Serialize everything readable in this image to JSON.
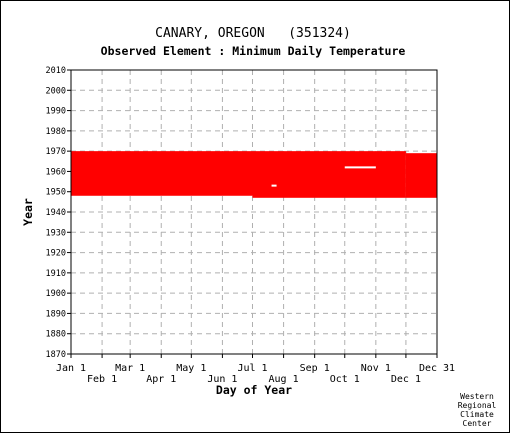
{
  "chart_data": {
    "type": "scatter",
    "title": "CANARY, OREGON   (351324)",
    "subtitle": "Observed Element : Minimum Daily Temperature",
    "xlabel": "Day of Year",
    "ylabel": "Year",
    "xlim": [
      1,
      366
    ],
    "ylim": [
      1870,
      2010
    ],
    "y_ticks": [
      2010,
      2000,
      1990,
      1980,
      1970,
      1960,
      1950,
      1940,
      1930,
      1920,
      1910,
      1900,
      1890,
      1880,
      1870
    ],
    "x_ticks_top": [
      {
        "label": "Jan 1",
        "day": 1
      },
      {
        "label": "Mar 1",
        "day": 60
      },
      {
        "label": "May 1",
        "day": 121
      },
      {
        "label": "Jul 1",
        "day": 182
      },
      {
        "label": "Sep 1",
        "day": 244
      },
      {
        "label": "Nov 1",
        "day": 305
      },
      {
        "label": "Dec 31",
        "day": 366
      }
    ],
    "x_ticks_bottom": [
      {
        "label": "Feb 1",
        "day": 32
      },
      {
        "label": "Apr 1",
        "day": 91
      },
      {
        "label": "Jun 1",
        "day": 152
      },
      {
        "label": "Aug 1",
        "day": 213
      },
      {
        "label": "Oct 1",
        "day": 274
      },
      {
        "label": "Dec 1",
        "day": 335
      }
    ],
    "series": [
      {
        "color": "#ff0000",
        "coverage": [
          {
            "day_start": 1,
            "day_end": 182,
            "year_start": 1948,
            "year_end": 1970
          },
          {
            "day_start": 182,
            "day_end": 335,
            "year_start": 1947,
            "year_end": 1970
          },
          {
            "day_start": 335,
            "day_end": 366,
            "year_start": 1947,
            "year_end": 1969
          }
        ],
        "gaps": [
          {
            "day_start": 274,
            "day_end": 305,
            "year": 1962
          },
          {
            "day_start": 201,
            "day_end": 206,
            "year": 1953
          }
        ]
      }
    ],
    "grid": true
  },
  "credit": [
    "Western",
    "Regional",
    "Climate",
    "Center"
  ]
}
